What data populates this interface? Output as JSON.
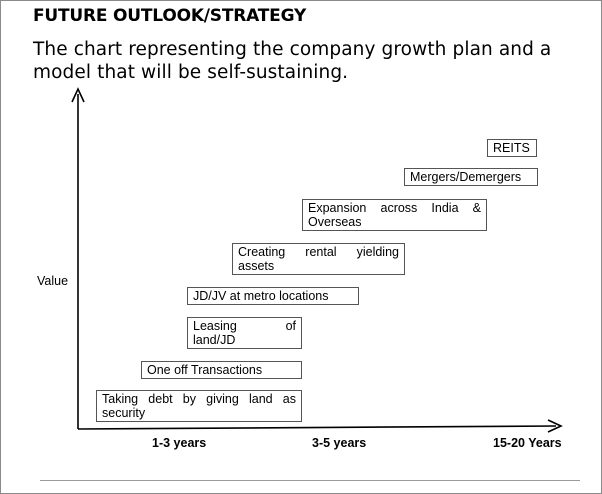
{
  "header": {
    "title": "FUTURE OUTLOOK/STRATEGY",
    "subtitle": "The chart representing the company growth plan and a model that will be self-sustaining."
  },
  "diagram": {
    "ylabel": "Value",
    "x_ticks": [
      "1-3 years",
      "3-5  years",
      "15-20  Years"
    ],
    "steps": [
      "Taking debt by giving land as security",
      "One off Transactions",
      "Leasing of land/JD",
      "JD/JV at metro locations",
      "Creating rental yielding assets",
      "Expansion across India & Overseas",
      "Mergers/Demergers",
      "REITS"
    ]
  }
}
